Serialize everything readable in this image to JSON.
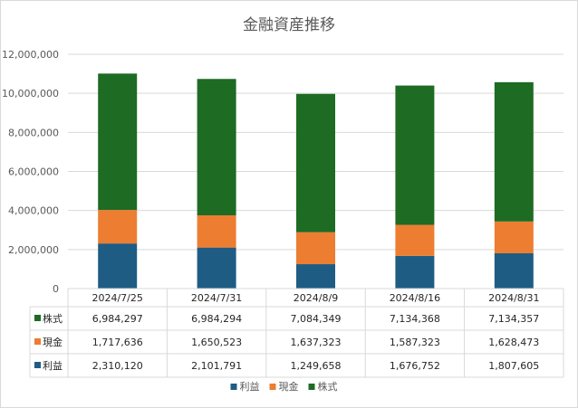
{
  "chart_data": {
    "type": "bar",
    "stacked": true,
    "title": "金融資産推移",
    "categories": [
      "2024/7/25",
      "2024/7/31",
      "2024/8/9",
      "2024/8/16",
      "2024/8/31"
    ],
    "series": [
      {
        "name": "利益",
        "color": "#1f5c84",
        "values": [
          2310120,
          2101791,
          1249658,
          1676752,
          1807605
        ]
      },
      {
        "name": "現金",
        "color": "#ed7d31",
        "values": [
          1717636,
          1650523,
          1637323,
          1587323,
          1628473
        ]
      },
      {
        "name": "株式",
        "color": "#1e6b24",
        "values": [
          6984297,
          6984294,
          7084349,
          7134368,
          7134357
        ]
      }
    ],
    "ylim": [
      0,
      12000000
    ],
    "yticks": [
      "0",
      "2,000,000",
      "4,000,000",
      "6,000,000",
      "8,000,000",
      "10,000,000",
      "12,000,000"
    ],
    "table_rows": [
      {
        "name": "株式",
        "color": "#1e6b24",
        "cells": [
          "6,984,297",
          "6,984,294",
          "7,084,349",
          "7,134,368",
          "7,134,357"
        ]
      },
      {
        "name": "現金",
        "color": "#ed7d31",
        "cells": [
          "1,717,636",
          "1,650,523",
          "1,637,323",
          "1,587,323",
          "1,628,473"
        ]
      },
      {
        "name": "利益",
        "color": "#1f5c84",
        "cells": [
          "2,310,120",
          "2,101,791",
          "1,249,658",
          "1,676,752",
          "1,807,605"
        ]
      }
    ],
    "grid": true,
    "legend_position": "bottom"
  }
}
